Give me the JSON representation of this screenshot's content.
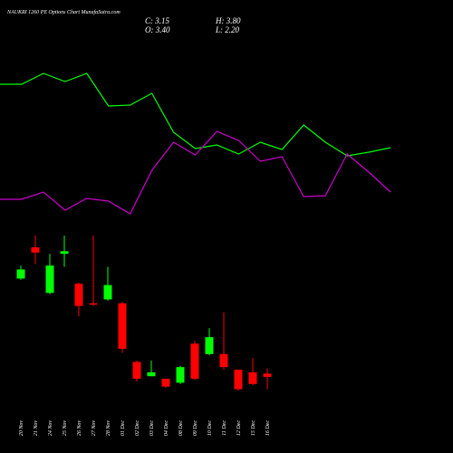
{
  "chart_data": [
    {
      "type": "candlestick",
      "title": "NAUKRI 1260 PE Options Chart MunafaSutra.com",
      "ohlc_text": {
        "close": "C: 3.15",
        "high": "H: 3.80",
        "open": "O: 3.40",
        "low": "L: 2.20"
      },
      "categories": [
        "20 Nov",
        "21 Nov",
        "24 Nov",
        "25 Nov",
        "26 Nov",
        "27 Nov",
        "28 Nov",
        "01 Dec",
        "02 Dec",
        "03 Dec",
        "04 Dec",
        "08 Dec",
        "09 Dec",
        "10 Dec",
        "11 Dec",
        "12 Dec",
        "15 Dec",
        "16 Dec"
      ],
      "open": [
        10.7,
        13.1,
        9.6,
        12.6,
        10.3,
        8.8,
        9.1,
        8.8,
        4.3,
        3.2,
        3.0,
        2.7,
        5.7,
        4.9,
        4.9,
        3.7,
        3.5,
        3.4
      ],
      "high": [
        11.7,
        14.0,
        12.6,
        14.0,
        10.4,
        14.0,
        11.6,
        8.9,
        4.4,
        4.4,
        3.0,
        4.0,
        5.9,
        6.9,
        8.1,
        3.7,
        4.6,
        3.8
      ],
      "low": [
        10.6,
        11.8,
        9.5,
        11.6,
        7.8,
        8.6,
        9.0,
        5.0,
        2.8,
        3.2,
        2.3,
        2.6,
        2.9,
        4.8,
        3.7,
        2.1,
        2.5,
        2.2
      ],
      "close": [
        11.4,
        12.7,
        11.7,
        12.8,
        8.6,
        8.7,
        10.2,
        5.3,
        3.0,
        3.5,
        2.4,
        3.9,
        3.0,
        6.2,
        3.9,
        2.2,
        2.6,
        3.15
      ],
      "up_color": "#00ff00",
      "down_color": "#ff0000",
      "ylim": [
        -2.7,
        14.7
      ]
    },
    {
      "type": "line",
      "x": [
        0,
        1,
        2,
        3,
        4,
        5,
        6,
        7,
        8,
        9,
        10,
        11,
        12,
        13,
        14,
        15,
        16,
        17,
        18
      ],
      "xlim": [
        0,
        18
      ],
      "series": [
        {
          "color": "#00ff00",
          "values": [
            207,
            207,
            219,
            210,
            219,
            183,
            184,
            197,
            154,
            136,
            140,
            130,
            143,
            135,
            162,
            143,
            128,
            132,
            137
          ]
        },
        {
          "color": "#cc00cc",
          "values": [
            80,
            80,
            88,
            68,
            81,
            78,
            64,
            112,
            143,
            129,
            155,
            145,
            122,
            127,
            83,
            84,
            130,
            110,
            88
          ]
        }
      ],
      "ylim": [
        0,
        300
      ]
    }
  ]
}
